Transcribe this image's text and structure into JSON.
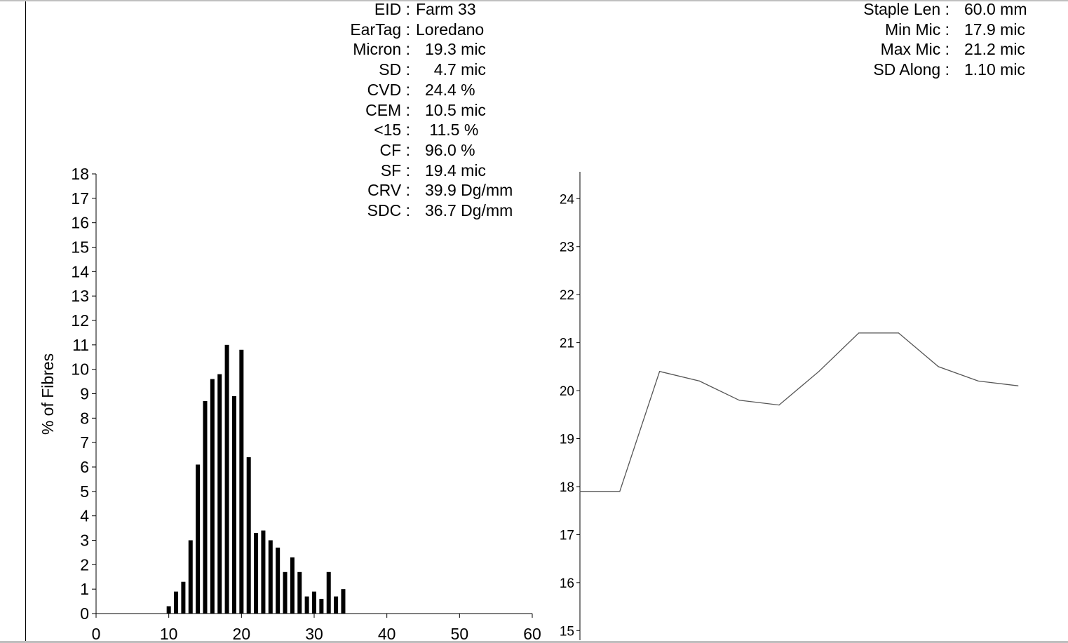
{
  "stats_left": [
    {
      "label": "EID :",
      "value": "Farm 33"
    },
    {
      "label": "EarTag :",
      "value": "Loredano"
    },
    {
      "label": "Micron :",
      "value": "19.3 mic"
    },
    {
      "label": "SD :",
      "value": "  4.7 mic"
    },
    {
      "label": "CVD :",
      "value": "24.4 %"
    },
    {
      "label": "CEM :",
      "value": "10.5 mic"
    },
    {
      "label": "<15 :",
      "value": " 11.5 %"
    },
    {
      "label": "CF :",
      "value": "96.0 %"
    },
    {
      "label": "SF :",
      "value": "19.4 mic"
    },
    {
      "label": "CRV :",
      "value": "39.9 Dg/mm"
    },
    {
      "label": "SDC :",
      "value": "36.7 Dg/mm"
    }
  ],
  "stats_right": [
    {
      "label": "Staple Len :",
      "value": "60.0 mm"
    },
    {
      "label": "Min Mic :",
      "value": "17.9 mic"
    },
    {
      "label": "Max Mic :",
      "value": "21.2 mic"
    },
    {
      "label": "SD Along :",
      "value": "1.10 mic"
    }
  ],
  "chart_data": [
    {
      "type": "bar",
      "title": "",
      "xlabel": "",
      "ylabel": "% of Fibres",
      "xlim": [
        0,
        60
      ],
      "ylim": [
        0,
        18
      ],
      "xticks": [
        "0",
        "10",
        "20",
        "30",
        "40",
        "50",
        "60"
      ],
      "yticks": [
        "0",
        "1",
        "2",
        "3",
        "4",
        "5",
        "6",
        "7",
        "8",
        "9",
        "10",
        "11",
        "12",
        "13",
        "14",
        "15",
        "16",
        "17",
        "18"
      ],
      "grid": false,
      "x": [
        10,
        11,
        12,
        13,
        14,
        15,
        16,
        17,
        18,
        19,
        20,
        21,
        22,
        23,
        24,
        25,
        26,
        27,
        28,
        29,
        30,
        31,
        32,
        33,
        34
      ],
      "values": [
        0.3,
        0.9,
        1.3,
        3.0,
        6.1,
        8.7,
        9.6,
        9.8,
        11.0,
        8.9,
        10.8,
        6.4,
        3.3,
        3.4,
        3.0,
        2.7,
        1.7,
        2.3,
        1.7,
        0.7,
        0.9,
        0.6,
        1.7,
        0.7,
        1.0
      ]
    },
    {
      "type": "line",
      "title": "",
      "xlabel": "",
      "ylabel": "",
      "ylim": [
        15,
        24.5
      ],
      "yticks": [
        "15",
        "16",
        "17",
        "18",
        "19",
        "20",
        "21",
        "22",
        "23",
        "24"
      ],
      "grid": false,
      "x": [
        0,
        1,
        2,
        3,
        4,
        5,
        6,
        7,
        8,
        9,
        10,
        11
      ],
      "values": [
        17.9,
        17.9,
        20.4,
        20.2,
        19.8,
        19.7,
        20.4,
        21.2,
        21.2,
        20.5,
        20.2,
        20.1
      ]
    }
  ]
}
